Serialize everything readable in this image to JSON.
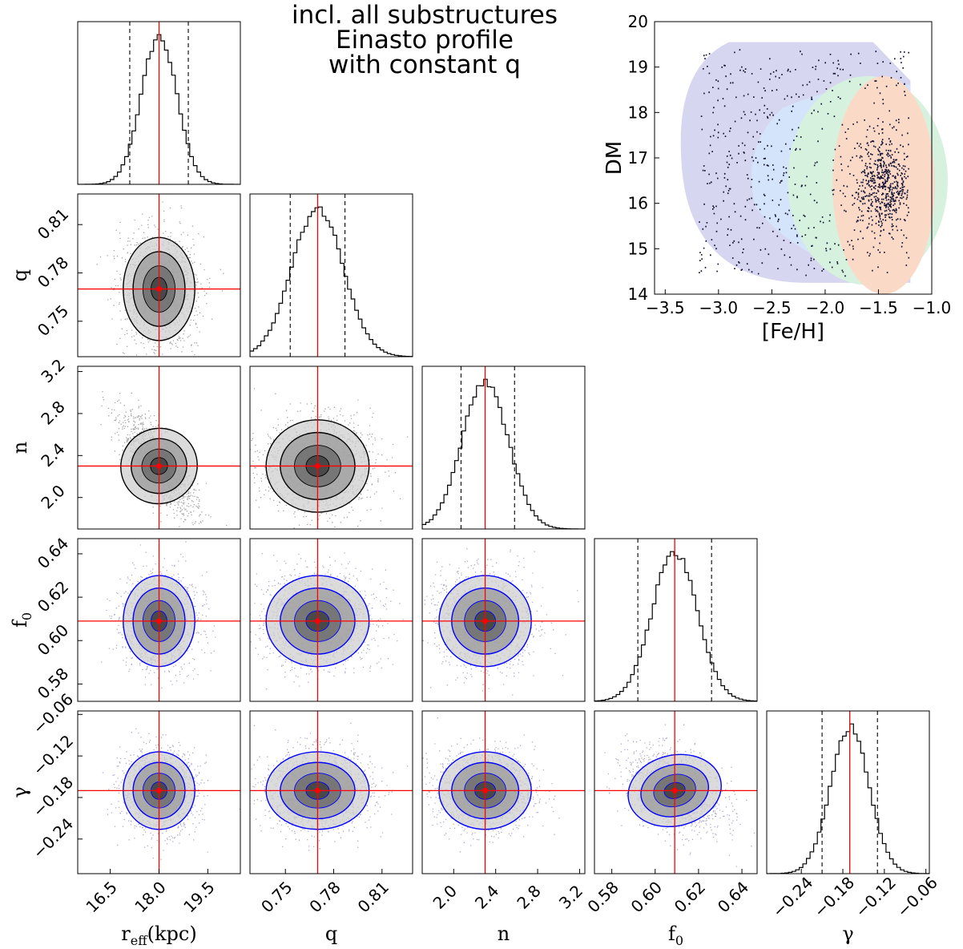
{
  "title_lines": [
    "incl. all substructures",
    "Einasto profile",
    "with constant q"
  ],
  "chart_data": [
    {
      "type": "corner",
      "parameters": [
        {
          "key": "reff",
          "label": "r",
          "label_sub": "eff",
          "label_suffix": "(kpc)",
          "ticks": [
            16.5,
            18.0,
            19.5
          ],
          "tick_labels": [
            "16.5",
            "18.0",
            "19.5"
          ],
          "range": [
            15.5,
            20.5
          ],
          "best_fit": 18.0,
          "quantiles": [
            17.1,
            18.9
          ],
          "mean": 18.0,
          "sd": 0.55
        },
        {
          "key": "q",
          "label": "q",
          "label_sub": "",
          "label_suffix": "",
          "ticks": [
            0.75,
            0.78,
            0.81
          ],
          "tick_labels": [
            "0.75",
            "0.78",
            "0.81"
          ],
          "range": [
            0.728,
            0.829
          ],
          "best_fit": 0.77,
          "quantiles": [
            0.753,
            0.787
          ],
          "mean": 0.77,
          "sd": 0.016
        },
        {
          "key": "n",
          "label": "n",
          "label_sub": "",
          "label_suffix": "",
          "ticks": [
            2.0,
            2.4,
            2.8,
            3.2
          ],
          "tick_labels": [
            "2.0",
            "2.4",
            "2.8",
            "3.2"
          ],
          "range": [
            1.7,
            3.25
          ],
          "best_fit": 2.3,
          "quantiles": [
            2.07,
            2.58
          ],
          "mean": 2.3,
          "sd": 0.22
        },
        {
          "key": "f0",
          "label": "f",
          "label_sub": "0",
          "label_suffix": "",
          "ticks": [
            0.58,
            0.6,
            0.62,
            0.64
          ],
          "tick_labels": [
            "0.58",
            "0.60",
            "0.62",
            "0.64"
          ],
          "range": [
            0.572,
            0.647
          ],
          "best_fit": 0.609,
          "quantiles": [
            0.592,
            0.626
          ],
          "mean": 0.609,
          "sd": 0.0105
        },
        {
          "key": "gamma",
          "label": "γ",
          "label_sub": "",
          "label_suffix": "",
          "ticks": [
            -0.24,
            -0.18,
            -0.12,
            -0.06
          ],
          "tick_labels": [
            "−0.24",
            "−0.18",
            "−0.12",
            "−0.06"
          ],
          "range": [
            -0.29,
            -0.055
          ],
          "best_fit": -0.17,
          "quantiles": [
            -0.21,
            -0.13
          ],
          "mean": -0.17,
          "sd": 0.028
        }
      ],
      "blue_contour_panels": [
        "f0",
        "gamma"
      ],
      "correlations": {
        "reff-n": -0.75,
        "f0-gamma": -0.35
      },
      "colors": {
        "best_fit": "#ff0000",
        "contour_black": "#000000",
        "contour_blue": "#0000ff",
        "points_blue": "#1a1a66"
      }
    },
    {
      "type": "scatter",
      "xlabel": "[Fe/H]",
      "ylabel": "DM",
      "xlim": [
        -3.6,
        -1.0
      ],
      "ylim": [
        14,
        20
      ],
      "xticks": [
        -3.5,
        -3.0,
        -2.5,
        -2.0,
        -1.5,
        -1.0
      ],
      "xtick_labels": [
        "−3.5",
        "−3.0",
        "−2.5",
        "−2.0",
        "−1.5",
        "−1.0"
      ],
      "yticks": [
        14,
        15,
        16,
        17,
        18,
        19,
        20
      ],
      "ytick_labels": [
        "14",
        "15",
        "16",
        "17",
        "18",
        "19",
        "20"
      ],
      "region_colors": [
        "#d6d6f0",
        "#d4e4fa",
        "#d6f2de",
        "#fbd9c7"
      ],
      "point_color": "#111133"
    }
  ]
}
